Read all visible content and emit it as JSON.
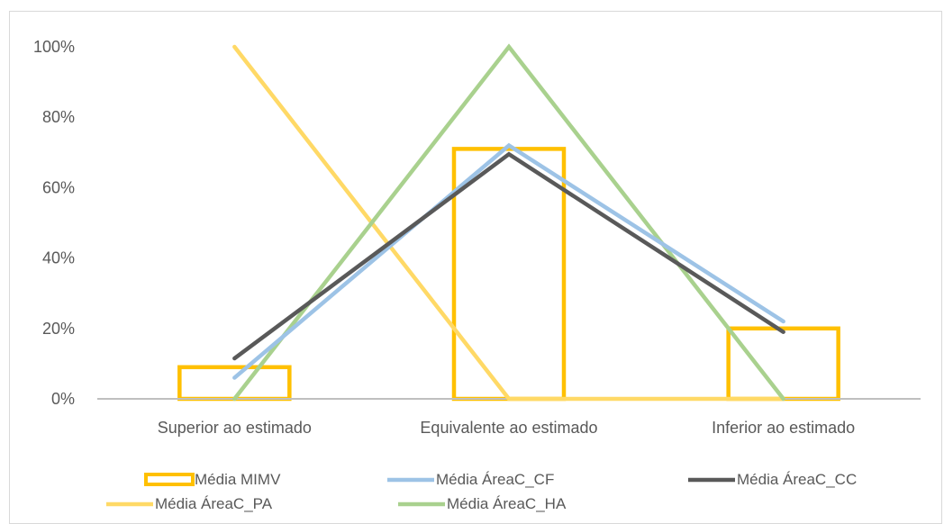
{
  "chart_data": {
    "type": "bar",
    "categories": [
      "Superior ao estimado",
      "Equivalente ao estimado",
      "Inferior ao estimado"
    ],
    "ylim": [
      0,
      100
    ],
    "yticks": [
      "0%",
      "20%",
      "40%",
      "60%",
      "80%",
      "100%"
    ],
    "series": [
      {
        "name": "Média MIMV",
        "kind": "bar",
        "color": "#FFC000",
        "values": [
          9,
          71,
          20
        ]
      },
      {
        "name": "Média ÁreaC_CF",
        "kind": "line",
        "color": "#9DC3E6",
        "values": [
          6,
          72,
          22
        ]
      },
      {
        "name": "Média ÁreaC_CC",
        "kind": "line",
        "color": "#595959",
        "values": [
          11.5,
          69.5,
          19
        ]
      },
      {
        "name": "Média ÁreaC_PA",
        "kind": "line",
        "color": "#FFD966",
        "values": [
          100,
          0,
          0
        ]
      },
      {
        "name": "Média ÁreaC_HA",
        "kind": "line",
        "color": "#A9D18E",
        "values": [
          0,
          100,
          0
        ]
      }
    ],
    "legend_position": "bottom",
    "grid": false
  }
}
